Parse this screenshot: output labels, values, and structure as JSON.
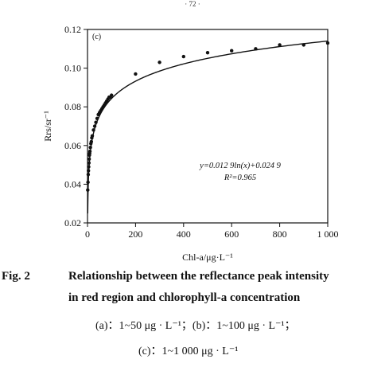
{
  "page_mark": "· 72 ·",
  "chart_data": {
    "type": "scatter",
    "panel_label": "(c)",
    "xlabel": "Chl-a/μg·L⁻¹",
    "ylabel": "Rrs/sr⁻¹",
    "xlim": [
      0,
      1000
    ],
    "ylim": [
      0.02,
      0.12
    ],
    "x_ticks": [
      0,
      200,
      400,
      600,
      800,
      1000
    ],
    "x_tick_labels": [
      "0",
      "200",
      "400",
      "600",
      "800",
      "1 000"
    ],
    "y_ticks": [
      0.02,
      0.04,
      0.06,
      0.08,
      0.1,
      0.12
    ],
    "y_tick_labels": [
      "0.02",
      "0.04",
      "0.06",
      "0.08",
      "0.10",
      "0.12"
    ],
    "fit": {
      "equation": "y=0.012 9ln(x)+0.024 9",
      "r_squared": "R²=0.965",
      "a": 0.0129,
      "b": 0.0249
    },
    "points": {
      "x": [
        1,
        2,
        3,
        4,
        5,
        6,
        7,
        8,
        9,
        10,
        12,
        14,
        16,
        18,
        20,
        25,
        30,
        35,
        40,
        45,
        50,
        55,
        60,
        65,
        70,
        75,
        80,
        85,
        90,
        95,
        100,
        200,
        300,
        400,
        500,
        600,
        700,
        800,
        900,
        1000
      ],
      "y": [
        0.037,
        0.041,
        0.045,
        0.047,
        0.049,
        0.051,
        0.053,
        0.055,
        0.056,
        0.057,
        0.059,
        0.061,
        0.062,
        0.064,
        0.065,
        0.068,
        0.07,
        0.072,
        0.074,
        0.076,
        0.077,
        0.078,
        0.079,
        0.08,
        0.081,
        0.082,
        0.083,
        0.084,
        0.085,
        0.085,
        0.086,
        0.097,
        0.103,
        0.106,
        0.108,
        0.109,
        0.11,
        0.112,
        0.112,
        0.113
      ]
    },
    "grid": false,
    "legend": "none"
  },
  "caption": {
    "label": "Fig. 2",
    "line1": "Relationship between the reflectance peak intensity",
    "line2": "in red region and chlorophyll-a concentration",
    "sub1": "(a)：1~50 μg · L⁻¹；(b)：1~100 μg · L⁻¹；",
    "sub2": "(c)：1~1 000 μg · L⁻¹"
  }
}
